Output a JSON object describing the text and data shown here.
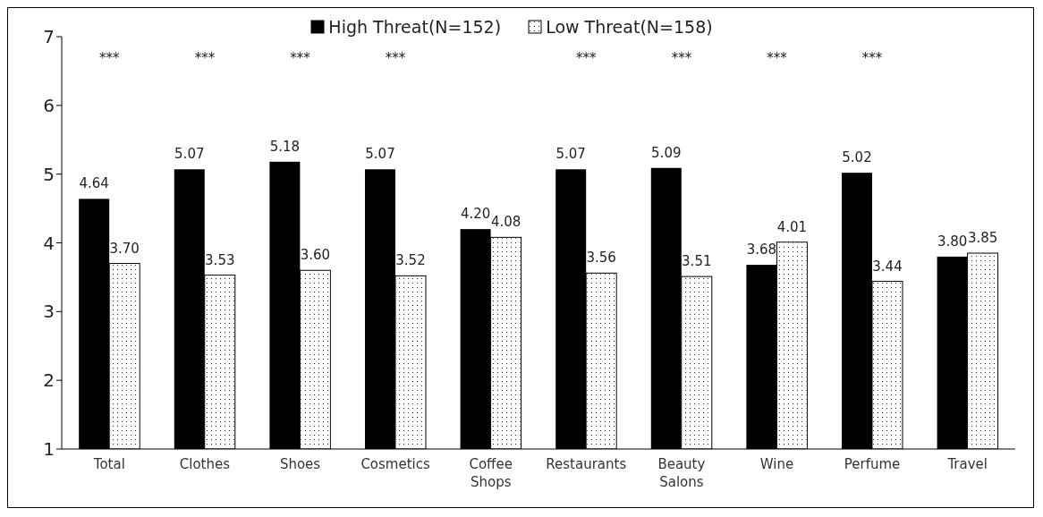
{
  "chart_data": {
    "type": "bar",
    "categories": [
      "Total",
      "Clothes",
      "Shoes",
      "Cosmetics",
      "Coffee Shops",
      "Restaurants",
      "Beauty Salons",
      "Wine",
      "Perfume",
      "Travel"
    ],
    "series": [
      {
        "name": "High Threat(N=152)",
        "color": "#000000",
        "values": [
          4.64,
          5.07,
          5.18,
          5.07,
          4.2,
          5.07,
          5.09,
          3.68,
          5.02,
          3.8
        ],
        "value_labels": [
          "4.64",
          "5.07",
          "5.18",
          "5.07",
          "4.20",
          "5.07",
          "5.09",
          "3.68",
          "5.02",
          "3.80"
        ]
      },
      {
        "name": "Low Threat(N=158)",
        "color": "#ffffff",
        "values": [
          3.7,
          3.53,
          3.6,
          3.52,
          4.08,
          3.56,
          3.51,
          4.01,
          3.44,
          3.85
        ],
        "value_labels": [
          "3.70",
          "3.53",
          "3.60",
          "3.52",
          "4.08",
          "3.56",
          "3.51",
          "4.01",
          "3.44",
          "3.85"
        ]
      }
    ],
    "ylim": [
      1,
      7
    ],
    "yticks": [
      1,
      2,
      3,
      4,
      5,
      6,
      7
    ],
    "grid": false,
    "legend": "top",
    "annotations": [
      "***",
      "***",
      "***",
      "***",
      "***",
      "***",
      "***",
      "***"
    ]
  }
}
